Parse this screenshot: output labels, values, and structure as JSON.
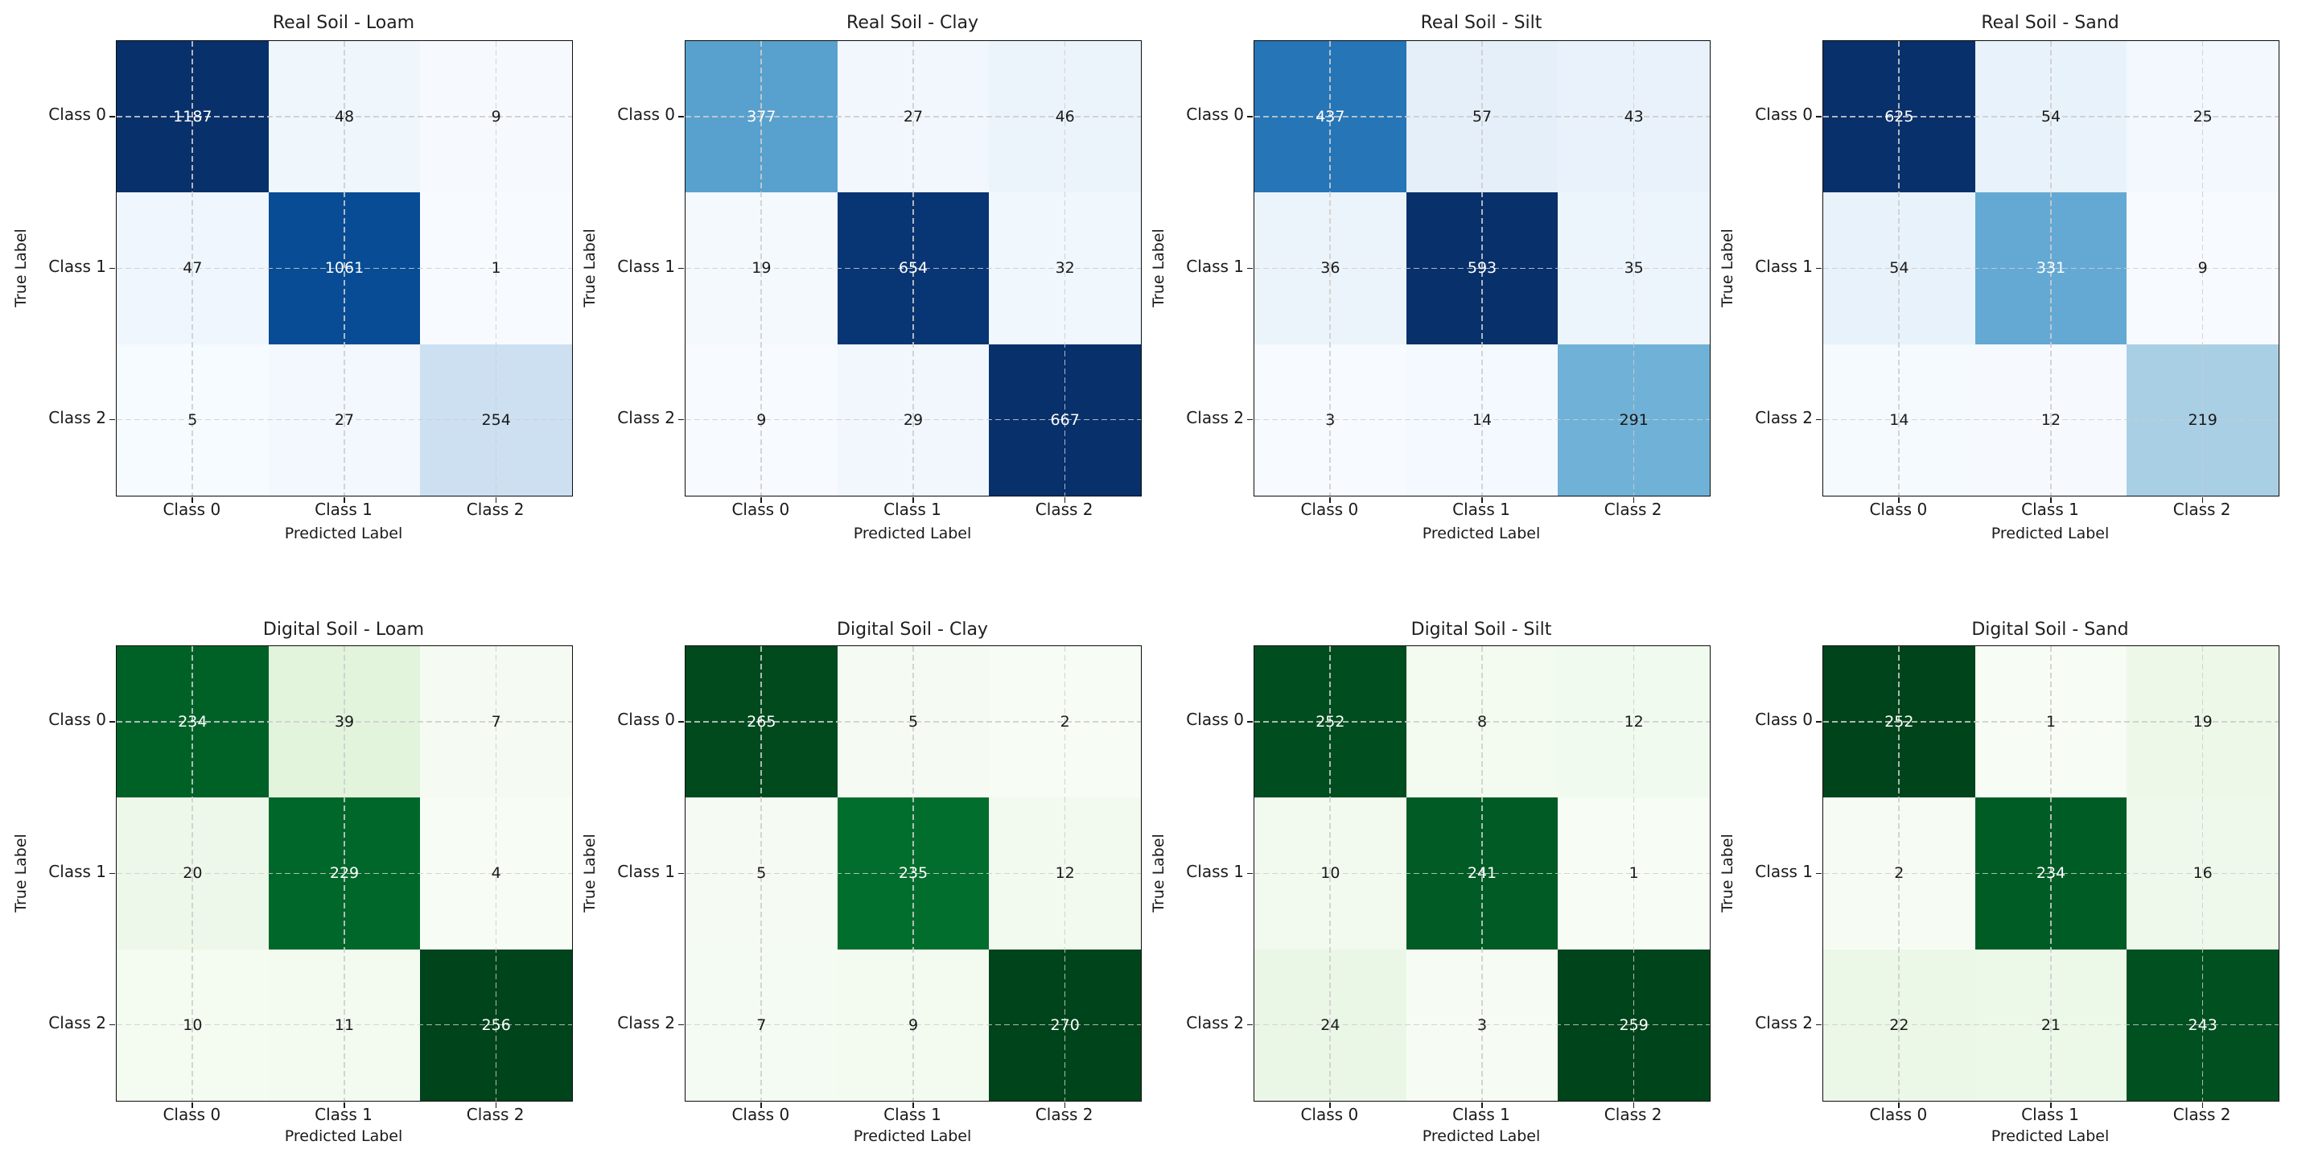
{
  "figure": {
    "background": "#ffffff",
    "rows_meaning": [
      "Real Soil",
      "Digital Soil"
    ],
    "columns_meaning": [
      "Loam",
      "Clay",
      "Silt",
      "Sand"
    ]
  },
  "shared": {
    "xlabel": "Predicted Label",
    "ylabel": "True Label",
    "x_ticks": [
      "Class 0",
      "Class 1",
      "Class 2"
    ],
    "y_ticks": [
      "Class 0",
      "Class 1",
      "Class 2"
    ]
  },
  "style_colors": {
    "spine": "#0d0d0d",
    "text": "#1a1a1a",
    "gridline": "#cdcdcd",
    "cell_text_dark": "#1a1a1a",
    "cell_text_light": "#ffffff",
    "colormap_blues": [
      "#f7fbff",
      "#deebf7",
      "#c6dbef",
      "#9ecae1",
      "#6baed6",
      "#4292c6",
      "#2171b5",
      "#08519c",
      "#08306b"
    ],
    "colormap_greens": [
      "#f7fcf5",
      "#e5f5e0",
      "#c7e9c0",
      "#a1d99b",
      "#74c476",
      "#41ab5d",
      "#238b45",
      "#006d2c",
      "#00441b"
    ]
  },
  "chart_data": [
    {
      "type": "heatmap",
      "title": "Real Soil - Loam",
      "colormap": "Blues",
      "matrix": [
        [
          1187,
          48,
          9
        ],
        [
          47,
          1061,
          1
        ],
        [
          5,
          27,
          254
        ]
      ]
    },
    {
      "type": "heatmap",
      "title": "Real Soil - Clay",
      "colormap": "Blues",
      "matrix": [
        [
          377,
          27,
          46
        ],
        [
          19,
          654,
          32
        ],
        [
          9,
          29,
          667
        ]
      ]
    },
    {
      "type": "heatmap",
      "title": "Real Soil - Silt",
      "colormap": "Blues",
      "matrix": [
        [
          437,
          57,
          43
        ],
        [
          36,
          593,
          35
        ],
        [
          3,
          14,
          291
        ]
      ]
    },
    {
      "type": "heatmap",
      "title": "Real Soil - Sand",
      "colormap": "Blues",
      "matrix": [
        [
          625,
          54,
          25
        ],
        [
          54,
          331,
          9
        ],
        [
          14,
          12,
          219
        ]
      ]
    },
    {
      "type": "heatmap",
      "title": "Digital Soil - Loam",
      "colormap": "Greens",
      "matrix": [
        [
          234,
          39,
          7
        ],
        [
          20,
          229,
          4
        ],
        [
          10,
          11,
          256
        ]
      ]
    },
    {
      "type": "heatmap",
      "title": "Digital Soil - Clay",
      "colormap": "Greens",
      "matrix": [
        [
          265,
          5,
          2
        ],
        [
          5,
          235,
          12
        ],
        [
          7,
          9,
          270
        ]
      ]
    },
    {
      "type": "heatmap",
      "title": "Digital Soil - Silt",
      "colormap": "Greens",
      "matrix": [
        [
          252,
          8,
          12
        ],
        [
          10,
          241,
          1
        ],
        [
          24,
          3,
          259
        ]
      ]
    },
    {
      "type": "heatmap",
      "title": "Digital Soil - Sand",
      "colormap": "Greens",
      "matrix": [
        [
          252,
          1,
          19
        ],
        [
          2,
          234,
          16
        ],
        [
          22,
          21,
          243
        ]
      ]
    }
  ]
}
